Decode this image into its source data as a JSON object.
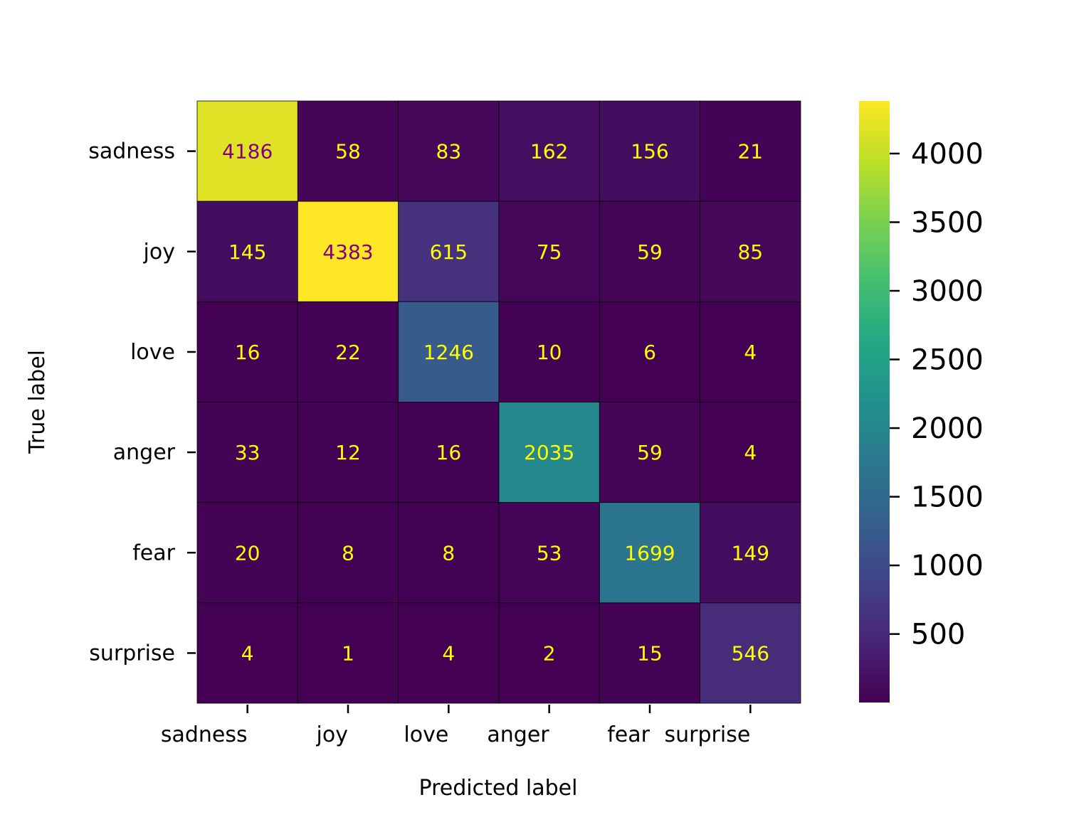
{
  "chart_data": {
    "type": "heatmap",
    "title": "",
    "xlabel": "Predicted label",
    "ylabel": "True label",
    "x_categories": [
      "sadness",
      "joy",
      "love",
      "anger",
      "fear",
      "surprise"
    ],
    "y_categories": [
      "sadness",
      "joy",
      "love",
      "anger",
      "fear",
      "surprise"
    ],
    "values": [
      [
        4186,
        58,
        83,
        162,
        156,
        21
      ],
      [
        145,
        4383,
        615,
        75,
        59,
        85
      ],
      [
        16,
        22,
        1246,
        10,
        6,
        4
      ],
      [
        33,
        12,
        16,
        2035,
        59,
        4
      ],
      [
        20,
        8,
        8,
        53,
        1699,
        149
      ],
      [
        4,
        1,
        4,
        2,
        15,
        546
      ]
    ],
    "colormap": "viridis",
    "color_range": [
      1,
      4383
    ],
    "colorbar_ticks": [
      500,
      1000,
      1500,
      2000,
      2500,
      3000,
      3500,
      4000
    ],
    "annotation_color_light": "#ffff00",
    "annotation_color_dark": "#800080",
    "grid": false,
    "legend": "colorbar-right"
  }
}
